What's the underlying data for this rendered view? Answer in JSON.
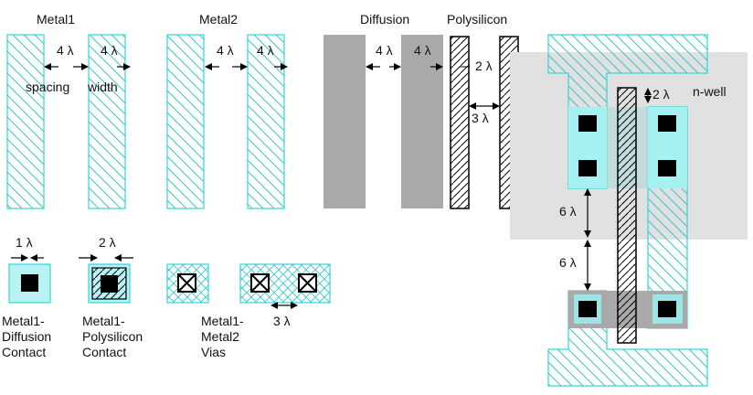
{
  "layer_titles": {
    "metal1": "Metal1",
    "metal2": "Metal2",
    "diffusion": "Diffusion",
    "polysilicon": "Polysilicon"
  },
  "rules": {
    "metal1_spacing": "4 λ",
    "metal1_width": "4 λ",
    "metal1_spacing_word": "spacing",
    "metal1_width_word": "width",
    "metal2_spacing": "4 λ",
    "metal2_width": "4 λ",
    "diffusion_spacing": "4 λ",
    "diffusion_width": "4 λ",
    "poly_width": "2 λ",
    "poly_spacing": "3 λ",
    "contact_surround_1": "1 λ",
    "contact_surround_2": "2 λ",
    "via_spacing": "3 λ",
    "well_overlap": "2 λ",
    "transistor_spacing_1": "6 λ",
    "transistor_spacing_2": "6 λ"
  },
  "captions": {
    "diff_contact": [
      "Metal1-",
      "Diffusion",
      "Contact"
    ],
    "poly_contact": [
      "Metal1-",
      "Polysilicon",
      "Contact"
    ],
    "vias": [
      "Metal1-",
      "Metal2",
      "Vias"
    ]
  },
  "nwell_label": "n-well",
  "colors": {
    "metal": "#33d6d6",
    "metal_fill": "#b8f2f2",
    "diffusion": "#a9a9a9",
    "nwell": "#e1e1e1",
    "poly": "#000000",
    "contact": "#000000"
  }
}
